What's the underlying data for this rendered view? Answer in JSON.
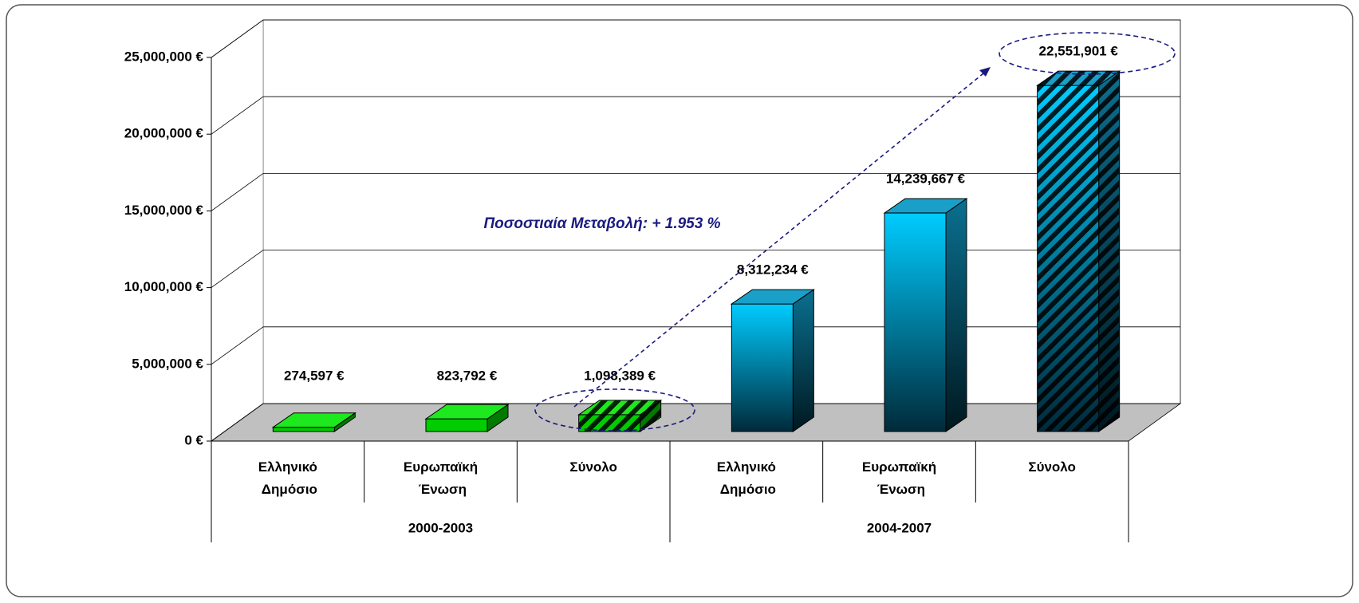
{
  "chart_data": {
    "type": "bar3d",
    "annotation": "Ποσοστιαία Μεταβολή: + 1.953 %",
    "groups": [
      {
        "name": "2000-2003",
        "color": "#00cc00",
        "categories": [
          "Ελληνικό Δημόσιο",
          "Ευρωπαϊκή Ένωση",
          "Σύνολο"
        ],
        "hatch": [
          false,
          false,
          true
        ]
      },
      {
        "name": "2004-2007",
        "color": "#00ccff",
        "categories": [
          "Ελληνικό Δημόσιο",
          "Ευρωπαϊκή Ένωση",
          "Σύνολο"
        ],
        "hatch": [
          false,
          false,
          true
        ]
      }
    ],
    "values": [
      274597,
      823792,
      1098389,
      8312234,
      14239667,
      22551901
    ],
    "value_labels": [
      "274,597 €",
      "823,792 €",
      "1,098,389 €",
      "8,312,234 €",
      "14,239,667 €",
      "22,551,901 €"
    ],
    "ylim": [
      0,
      25000000
    ],
    "yticks": [
      {
        "value": 0,
        "label": "0 €"
      },
      {
        "value": 5000000,
        "label": "5,000,000 €"
      },
      {
        "value": 10000000,
        "label": "10,000,000 €"
      },
      {
        "value": 15000000,
        "label": "15,000,000 €"
      },
      {
        "value": 20000000,
        "label": "20,000,000 €"
      },
      {
        "value": 25000000,
        "label": "25,000,000 €"
      }
    ],
    "grid": true
  }
}
